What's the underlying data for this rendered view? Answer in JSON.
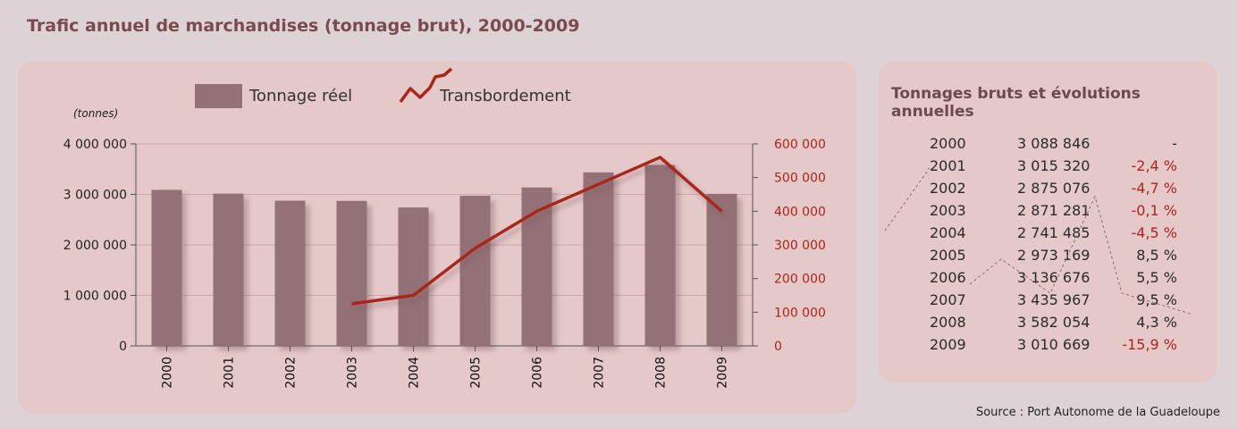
{
  "page": {
    "title": "Trafic annuel de marchandises (tonnage brut), 2000-2009",
    "source": "Source : Port Autonome de la Guadeloupe"
  },
  "colors": {
    "background": "#ddd3d6",
    "panel": "#e5c8c8",
    "bar": "#947176",
    "line": "#a8261a",
    "title": "#7a4a4e",
    "negative": "#b0241c"
  },
  "chart_data": {
    "type": "bar",
    "legend": {
      "bar_label": "Tonnage réel",
      "line_label": "Transbordement",
      "position": "top"
    },
    "units_label": "(tonnes)",
    "categories": [
      "2000",
      "2001",
      "2002",
      "2003",
      "2004",
      "2005",
      "2006",
      "2007",
      "2008",
      "2009"
    ],
    "series": [
      {
        "name": "Tonnage réel",
        "type": "bar",
        "axis": "left",
        "values": [
          3088846,
          3015320,
          2875076,
          2871281,
          2741485,
          2973169,
          3136676,
          3435967,
          3582054,
          3010669
        ]
      },
      {
        "name": "Transbordement",
        "type": "line",
        "axis": "right",
        "values": [
          null,
          null,
          null,
          125000,
          150000,
          290000,
          400000,
          480000,
          560000,
          400000
        ]
      }
    ],
    "y_left": {
      "ylim": [
        0,
        4000000
      ],
      "ticks": [
        0,
        1000000,
        2000000,
        3000000,
        4000000
      ],
      "tick_labels": [
        "0",
        "1 000 000",
        "2 000 000",
        "3 000 000",
        "4 000 000"
      ]
    },
    "y_right": {
      "ylim": [
        0,
        600000
      ],
      "ticks": [
        0,
        100000,
        200000,
        300000,
        400000,
        500000,
        600000
      ],
      "tick_labels": [
        "0",
        "100 000",
        "200 000",
        "300 000",
        "400 000",
        "500 000",
        "600 000"
      ]
    },
    "grid": true
  },
  "table": {
    "title": "Tonnages bruts et évolutions annuelles",
    "rows": [
      {
        "year": "2000",
        "tonnage": "3 088 846",
        "change": "-",
        "negative": false
      },
      {
        "year": "2001",
        "tonnage": "3 015 320",
        "change": "-2,4 %",
        "negative": true
      },
      {
        "year": "2002",
        "tonnage": "2 875 076",
        "change": "-4,7 %",
        "negative": true
      },
      {
        "year": "2003",
        "tonnage": "2 871 281",
        "change": "-0,1 %",
        "negative": true
      },
      {
        "year": "2004",
        "tonnage": "2 741 485",
        "change": "-4,5 %",
        "negative": true
      },
      {
        "year": "2005",
        "tonnage": "2 973 169",
        "change": "8,5 %",
        "negative": false
      },
      {
        "year": "2006",
        "tonnage": "3 136 676",
        "change": "5,5 %",
        "negative": false
      },
      {
        "year": "2007",
        "tonnage": "3 435 967",
        "change": "9,5 %",
        "negative": false
      },
      {
        "year": "2008",
        "tonnage": "3 582 054",
        "change": "4,3 %",
        "negative": false
      },
      {
        "year": "2009",
        "tonnage": "3 010 669",
        "change": "-15,9 %",
        "negative": true
      }
    ]
  }
}
